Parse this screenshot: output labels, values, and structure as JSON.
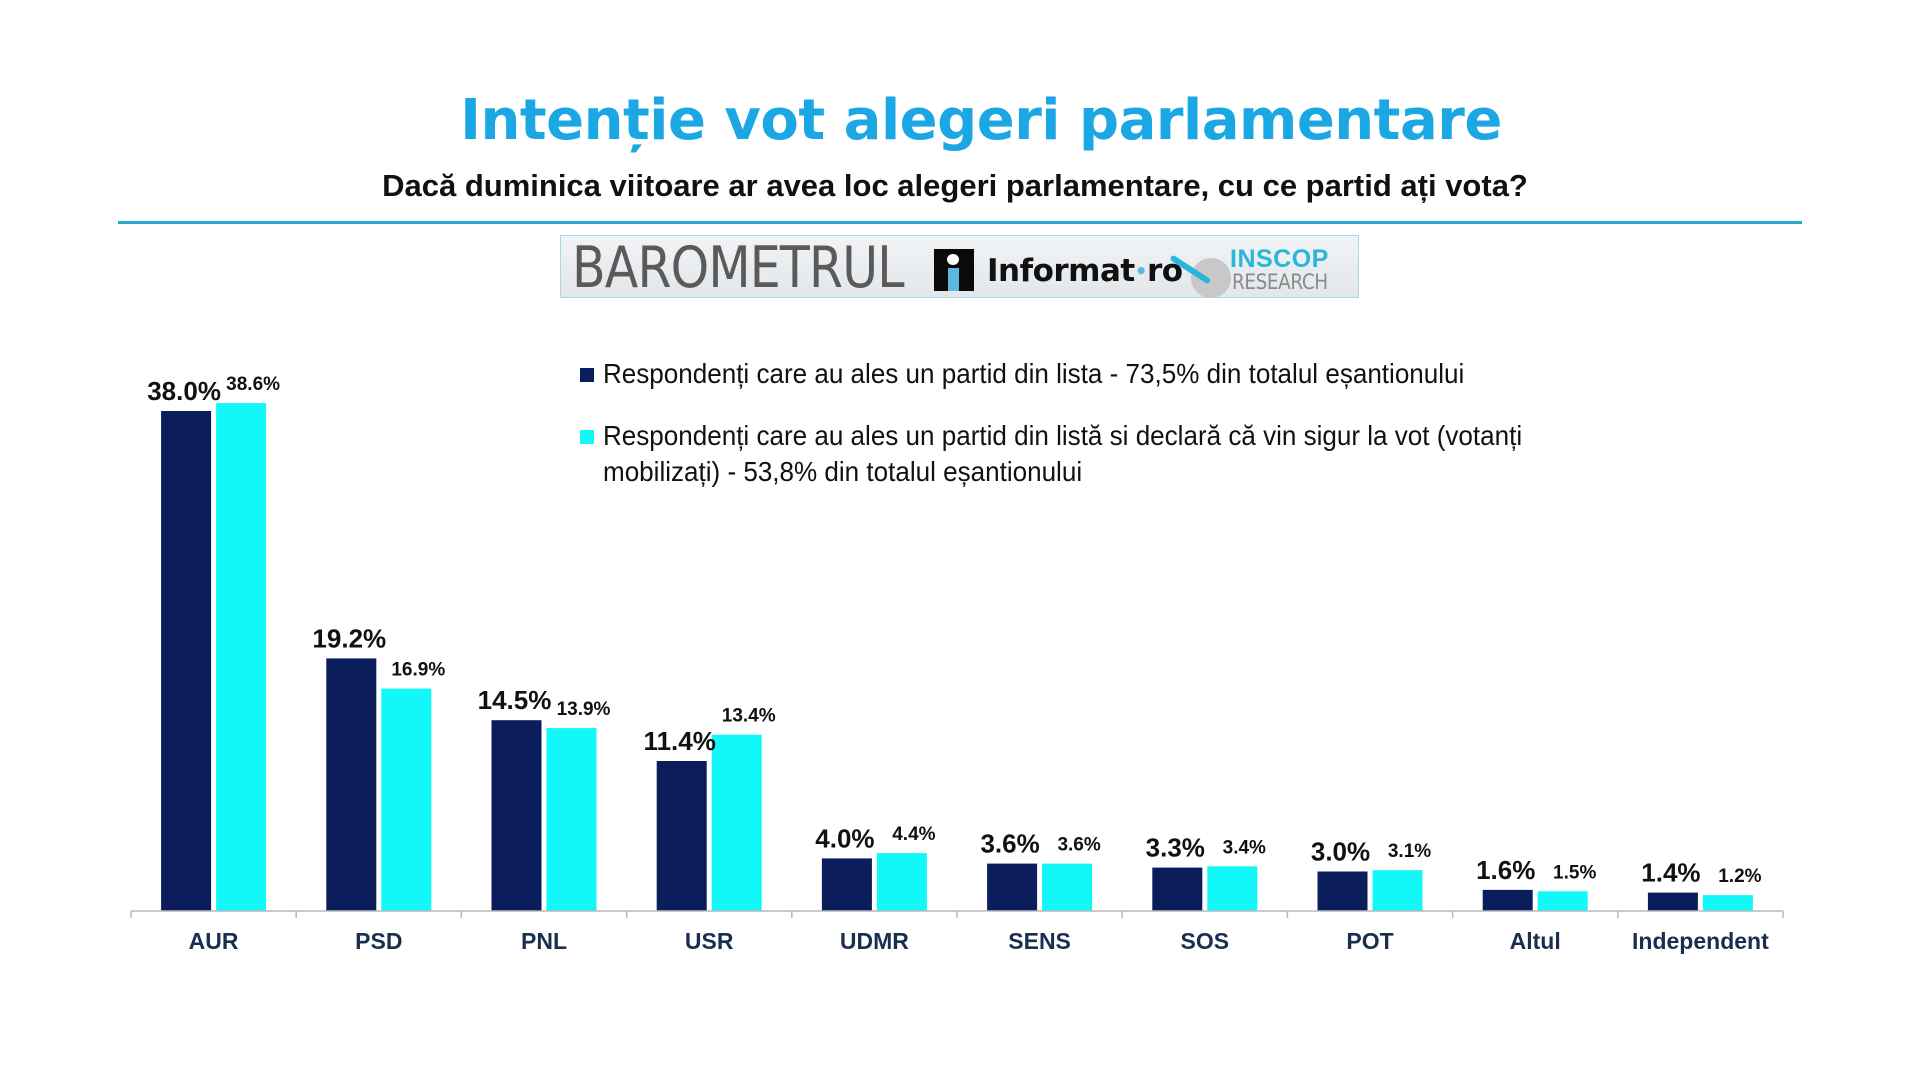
{
  "header": {
    "title": "Intenție vot alegeri parlamentare",
    "subtitle": "Dacă duminica viitoare ar avea loc alegeri parlamentare, cu ce partid ați vota?"
  },
  "logos": {
    "barometrul": "BAROMETRUL",
    "informat_main": "Informat",
    "informat_sep": "•",
    "informat_tld": "ro",
    "inscop": "INSCOP",
    "research": "RESEARCH"
  },
  "colors": {
    "title": "#1ba7e3",
    "series_1": "#0b1d5a",
    "series_2": "#12f7f7",
    "category_label": "#1a2e50",
    "rule": "#2aa6d4"
  },
  "chart_data": {
    "type": "bar",
    "title": "Intenție vot alegeri parlamentare",
    "subtitle": "Dacă duminica viitoare ar avea loc alegeri parlamentare, cu ce partid ați vota?",
    "xlabel": "",
    "ylabel": "",
    "ylim": [
      0,
      40
    ],
    "grid": false,
    "legend_position": "top-right",
    "categories": [
      "AUR",
      "PSD",
      "PNL",
      "USR",
      "UDMR",
      "SENS",
      "SOS",
      "POT",
      "Altul",
      "Independent"
    ],
    "series": [
      {
        "name": "Respondenți care au ales un partid din lista - 73,5% din totalul eșantionului",
        "color": "#0b1d5a",
        "values": [
          38.0,
          19.2,
          14.5,
          11.4,
          4.0,
          3.6,
          3.3,
          3.0,
          1.6,
          1.4
        ],
        "labels": [
          "38.0%",
          "19.2%",
          "14.5%",
          "11.4%",
          "4.0%",
          "3.6%",
          "3.3%",
          "3.0%",
          "1.6%",
          "1.4%"
        ]
      },
      {
        "name": "Respondenți care au ales un partid din listă si declară că vin sigur la vot (votanți mobilizați) - 53,8% din totalul eșantionului",
        "color": "#12f7f7",
        "values": [
          38.6,
          16.9,
          13.9,
          13.4,
          4.4,
          3.6,
          3.4,
          3.1,
          1.5,
          1.2
        ],
        "labels": [
          "38.6%",
          "16.9%",
          "13.9%",
          "13.4%",
          "4.4%",
          "3.6%",
          "3.4%",
          "3.1%",
          "1.5%",
          "1.2%"
        ]
      }
    ]
  },
  "legend": {
    "items": [
      {
        "text": "Respondenți care au ales un partid din lista - 73,5% din totalul eșantionului",
        "color": "#0b1d5a"
      },
      {
        "text": "Respondenți care au ales un partid din listă si declară că vin sigur la vot (votanți mobilizați) - 53,8% din totalul eșantionului",
        "color": "#12f7f7"
      }
    ]
  }
}
